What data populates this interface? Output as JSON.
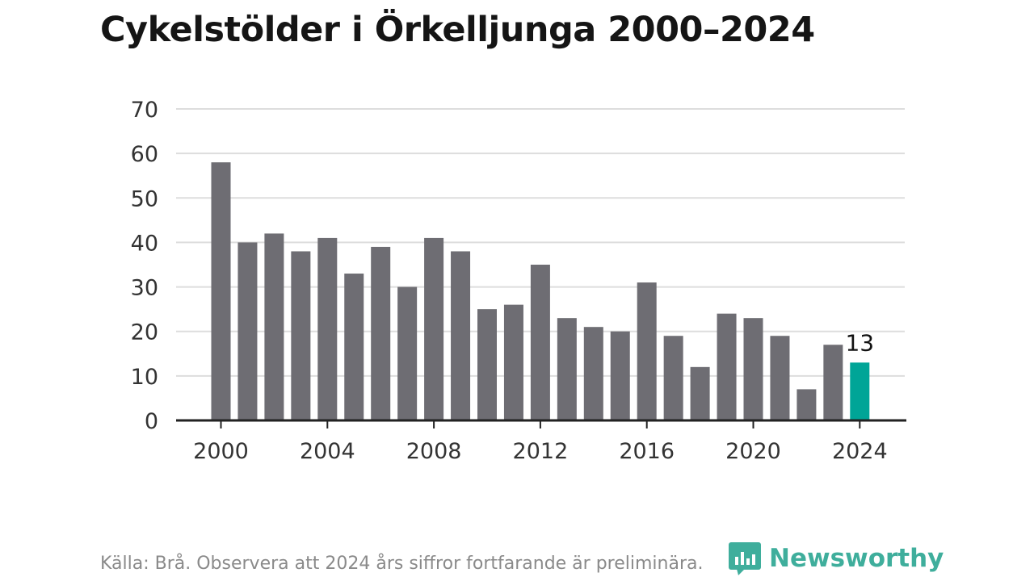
{
  "title": "Cykelstölder i Örkelljunga 2000–2024",
  "source_note": "Källa: Brå. Observera att 2024 års siffror fortfarande är preliminära.",
  "brand": {
    "name": "Newsworthy",
    "icon": "newsworthy-logo-icon",
    "color": "#3fae9c"
  },
  "colors": {
    "bar": "#6e6d73",
    "highlight": "#00a597",
    "grid": "#dddddd",
    "axis": "#222222",
    "text": "#333333"
  },
  "chart_data": {
    "type": "bar",
    "categories": [
      "2000",
      "2001",
      "2002",
      "2003",
      "2004",
      "2005",
      "2006",
      "2007",
      "2008",
      "2009",
      "2010",
      "2011",
      "2012",
      "2013",
      "2014",
      "2015",
      "2016",
      "2017",
      "2018",
      "2019",
      "2020",
      "2021",
      "2022",
      "2023",
      "2024"
    ],
    "values": [
      58,
      40,
      42,
      38,
      41,
      33,
      39,
      30,
      41,
      38,
      25,
      26,
      35,
      23,
      21,
      20,
      31,
      19,
      12,
      24,
      23,
      19,
      7,
      17,
      13
    ],
    "ylim": [
      0,
      70
    ],
    "yticks": [
      0,
      10,
      20,
      30,
      40,
      50,
      60,
      70
    ],
    "xticks": [
      "2000",
      "2004",
      "2008",
      "2012",
      "2016",
      "2020",
      "2024"
    ],
    "highlight_category": "2024",
    "annotations": [
      {
        "category": "2024",
        "text": "13"
      }
    ],
    "grid": true,
    "legend": false,
    "xlabel": "",
    "ylabel": ""
  }
}
